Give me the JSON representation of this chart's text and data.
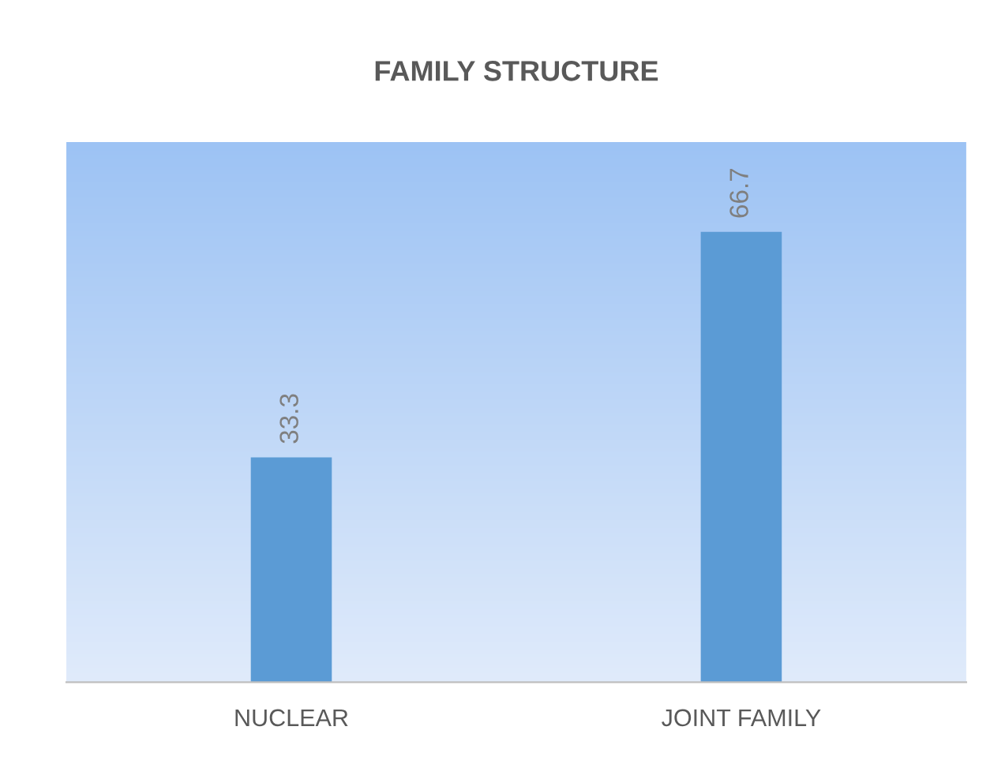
{
  "chart_data": {
    "type": "bar",
    "title": "FAMILY STRUCTURE",
    "categories": [
      "NUCLEAR",
      "JOINT FAMILY"
    ],
    "values": [
      33.3,
      66.7
    ],
    "color": "#5b9bd5",
    "ylim": [
      0,
      80
    ],
    "data_labels": true,
    "grid": false,
    "legend": false
  }
}
